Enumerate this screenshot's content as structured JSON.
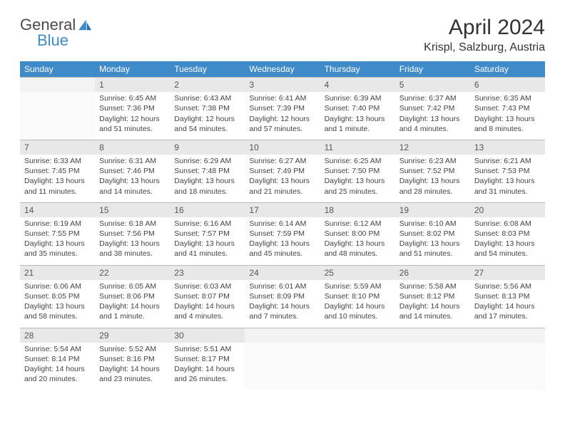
{
  "brand": {
    "part1": "General",
    "part2": "Blue"
  },
  "title": "April 2024",
  "location": "Krispl, Salzburg, Austria",
  "colors": {
    "accent": "#3f8bca",
    "header_bg": "#3f8bca",
    "day_bg": "#e8e8e8",
    "text": "#333333"
  },
  "weekdays": [
    "Sunday",
    "Monday",
    "Tuesday",
    "Wednesday",
    "Thursday",
    "Friday",
    "Saturday"
  ],
  "weeks": [
    [
      null,
      {
        "n": "1",
        "sr": "Sunrise: 6:45 AM",
        "ss": "Sunset: 7:36 PM",
        "dl": "Daylight: 12 hours and 51 minutes."
      },
      {
        "n": "2",
        "sr": "Sunrise: 6:43 AM",
        "ss": "Sunset: 7:38 PM",
        "dl": "Daylight: 12 hours and 54 minutes."
      },
      {
        "n": "3",
        "sr": "Sunrise: 6:41 AM",
        "ss": "Sunset: 7:39 PM",
        "dl": "Daylight: 12 hours and 57 minutes."
      },
      {
        "n": "4",
        "sr": "Sunrise: 6:39 AM",
        "ss": "Sunset: 7:40 PM",
        "dl": "Daylight: 13 hours and 1 minute."
      },
      {
        "n": "5",
        "sr": "Sunrise: 6:37 AM",
        "ss": "Sunset: 7:42 PM",
        "dl": "Daylight: 13 hours and 4 minutes."
      },
      {
        "n": "6",
        "sr": "Sunrise: 6:35 AM",
        "ss": "Sunset: 7:43 PM",
        "dl": "Daylight: 13 hours and 8 minutes."
      }
    ],
    [
      {
        "n": "7",
        "sr": "Sunrise: 6:33 AM",
        "ss": "Sunset: 7:45 PM",
        "dl": "Daylight: 13 hours and 11 minutes."
      },
      {
        "n": "8",
        "sr": "Sunrise: 6:31 AM",
        "ss": "Sunset: 7:46 PM",
        "dl": "Daylight: 13 hours and 14 minutes."
      },
      {
        "n": "9",
        "sr": "Sunrise: 6:29 AM",
        "ss": "Sunset: 7:48 PM",
        "dl": "Daylight: 13 hours and 18 minutes."
      },
      {
        "n": "10",
        "sr": "Sunrise: 6:27 AM",
        "ss": "Sunset: 7:49 PM",
        "dl": "Daylight: 13 hours and 21 minutes."
      },
      {
        "n": "11",
        "sr": "Sunrise: 6:25 AM",
        "ss": "Sunset: 7:50 PM",
        "dl": "Daylight: 13 hours and 25 minutes."
      },
      {
        "n": "12",
        "sr": "Sunrise: 6:23 AM",
        "ss": "Sunset: 7:52 PM",
        "dl": "Daylight: 13 hours and 28 minutes."
      },
      {
        "n": "13",
        "sr": "Sunrise: 6:21 AM",
        "ss": "Sunset: 7:53 PM",
        "dl": "Daylight: 13 hours and 31 minutes."
      }
    ],
    [
      {
        "n": "14",
        "sr": "Sunrise: 6:19 AM",
        "ss": "Sunset: 7:55 PM",
        "dl": "Daylight: 13 hours and 35 minutes."
      },
      {
        "n": "15",
        "sr": "Sunrise: 6:18 AM",
        "ss": "Sunset: 7:56 PM",
        "dl": "Daylight: 13 hours and 38 minutes."
      },
      {
        "n": "16",
        "sr": "Sunrise: 6:16 AM",
        "ss": "Sunset: 7:57 PM",
        "dl": "Daylight: 13 hours and 41 minutes."
      },
      {
        "n": "17",
        "sr": "Sunrise: 6:14 AM",
        "ss": "Sunset: 7:59 PM",
        "dl": "Daylight: 13 hours and 45 minutes."
      },
      {
        "n": "18",
        "sr": "Sunrise: 6:12 AM",
        "ss": "Sunset: 8:00 PM",
        "dl": "Daylight: 13 hours and 48 minutes."
      },
      {
        "n": "19",
        "sr": "Sunrise: 6:10 AM",
        "ss": "Sunset: 8:02 PM",
        "dl": "Daylight: 13 hours and 51 minutes."
      },
      {
        "n": "20",
        "sr": "Sunrise: 6:08 AM",
        "ss": "Sunset: 8:03 PM",
        "dl": "Daylight: 13 hours and 54 minutes."
      }
    ],
    [
      {
        "n": "21",
        "sr": "Sunrise: 6:06 AM",
        "ss": "Sunset: 8:05 PM",
        "dl": "Daylight: 13 hours and 58 minutes."
      },
      {
        "n": "22",
        "sr": "Sunrise: 6:05 AM",
        "ss": "Sunset: 8:06 PM",
        "dl": "Daylight: 14 hours and 1 minute."
      },
      {
        "n": "23",
        "sr": "Sunrise: 6:03 AM",
        "ss": "Sunset: 8:07 PM",
        "dl": "Daylight: 14 hours and 4 minutes."
      },
      {
        "n": "24",
        "sr": "Sunrise: 6:01 AM",
        "ss": "Sunset: 8:09 PM",
        "dl": "Daylight: 14 hours and 7 minutes."
      },
      {
        "n": "25",
        "sr": "Sunrise: 5:59 AM",
        "ss": "Sunset: 8:10 PM",
        "dl": "Daylight: 14 hours and 10 minutes."
      },
      {
        "n": "26",
        "sr": "Sunrise: 5:58 AM",
        "ss": "Sunset: 8:12 PM",
        "dl": "Daylight: 14 hours and 14 minutes."
      },
      {
        "n": "27",
        "sr": "Sunrise: 5:56 AM",
        "ss": "Sunset: 8:13 PM",
        "dl": "Daylight: 14 hours and 17 minutes."
      }
    ],
    [
      {
        "n": "28",
        "sr": "Sunrise: 5:54 AM",
        "ss": "Sunset: 8:14 PM",
        "dl": "Daylight: 14 hours and 20 minutes."
      },
      {
        "n": "29",
        "sr": "Sunrise: 5:52 AM",
        "ss": "Sunset: 8:16 PM",
        "dl": "Daylight: 14 hours and 23 minutes."
      },
      {
        "n": "30",
        "sr": "Sunrise: 5:51 AM",
        "ss": "Sunset: 8:17 PM",
        "dl": "Daylight: 14 hours and 26 minutes."
      },
      null,
      null,
      null,
      null
    ]
  ]
}
